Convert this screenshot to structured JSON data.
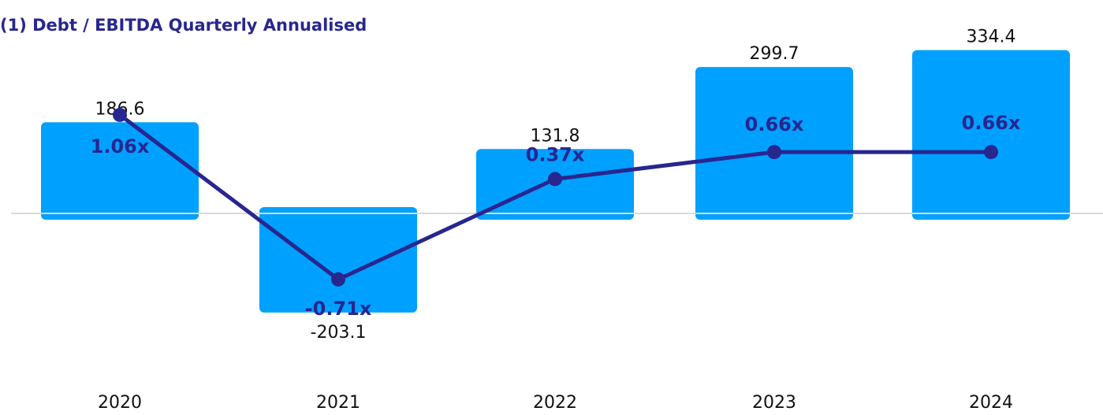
{
  "title": "(1) Debt / EBITDA Quarterly Annualised",
  "colors": {
    "bar": "#00a0ff",
    "line": "#28268f",
    "baseline": "#d9d9d9"
  },
  "chart_data": {
    "type": "bar",
    "title": "(1) Debt / EBITDA Quarterly Annualised",
    "categories": [
      "2020",
      "2021",
      "2022",
      "2023",
      "2024"
    ],
    "series": [
      {
        "type": "bar",
        "values": [
          186.6,
          -203.1,
          131.8,
          299.7,
          334.4
        ],
        "labels": [
          "186.6",
          "-203.1",
          "131.8",
          "299.7",
          "334.4"
        ]
      },
      {
        "type": "line",
        "values": [
          1.06,
          -0.71,
          0.37,
          0.66,
          0.66
        ],
        "labels": [
          "1.06x",
          "-0.71x",
          "0.37x",
          "0.66x",
          "0.66x"
        ]
      }
    ],
    "grid": false,
    "legend": "none"
  }
}
